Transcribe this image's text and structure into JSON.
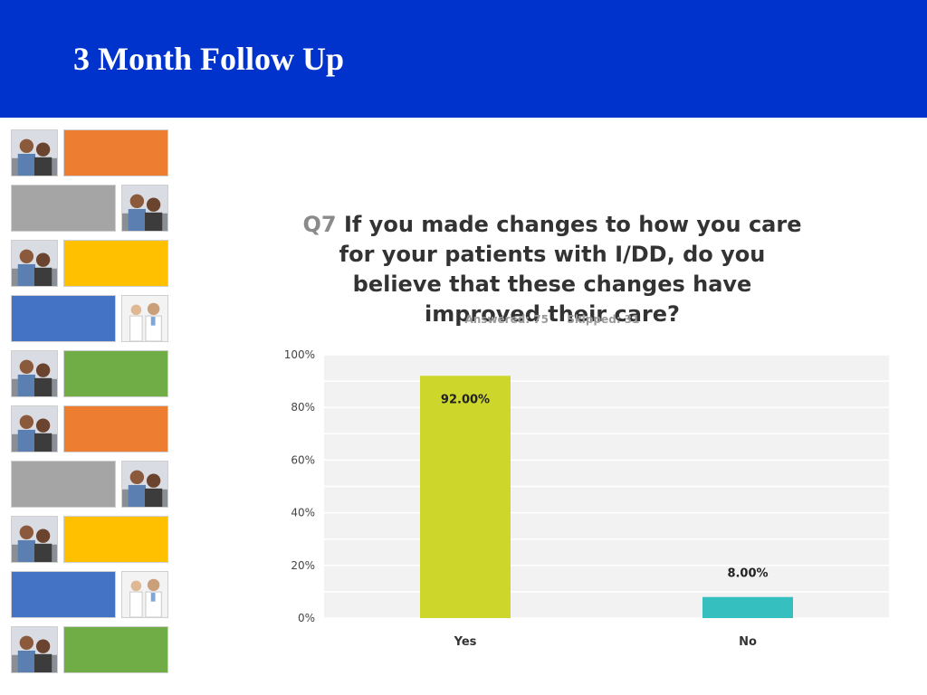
{
  "slide": {
    "title": "3 Month Follow Up"
  },
  "survey": {
    "question_number": "Q7",
    "question_text": "If you made changes to how you care for your patients with I/DD, do you believe that these changes have improved their care?",
    "answered": "Answered: 75",
    "skipped": "Skipped: 31"
  },
  "side_strip": [
    {
      "photo": "people-photo",
      "color": "#ed7d31",
      "photo_left": true
    },
    {
      "photo": "people-photo",
      "color": "#a5a5a5",
      "photo_left": false
    },
    {
      "photo": "people-photo",
      "color": "#ffc000",
      "photo_left": true
    },
    {
      "photo": "doctor-photo",
      "color": "#4472c4",
      "photo_left": false
    },
    {
      "photo": "people-photo",
      "color": "#70ad47",
      "photo_left": true
    },
    {
      "photo": "people-photo",
      "color": "#ed7d31",
      "photo_left": true
    },
    {
      "photo": "people-photo",
      "color": "#a5a5a5",
      "photo_left": false
    },
    {
      "photo": "people-photo",
      "color": "#ffc000",
      "photo_left": true
    },
    {
      "photo": "doctor-photo",
      "color": "#4472c4",
      "photo_left": false
    },
    {
      "photo": "people-photo",
      "color": "#70ad47",
      "photo_left": true
    }
  ],
  "chart_data": {
    "type": "bar",
    "categories": [
      "Yes",
      "No"
    ],
    "values": [
      92.0,
      8.0
    ],
    "data_labels": [
      "92.00%",
      "8.00%"
    ],
    "bar_colors": [
      "#ccd62b",
      "#36bfbf"
    ],
    "yticks": [
      "0%",
      "20%",
      "40%",
      "60%",
      "80%",
      "100%"
    ],
    "ylim": [
      0,
      100
    ],
    "grid": true
  }
}
